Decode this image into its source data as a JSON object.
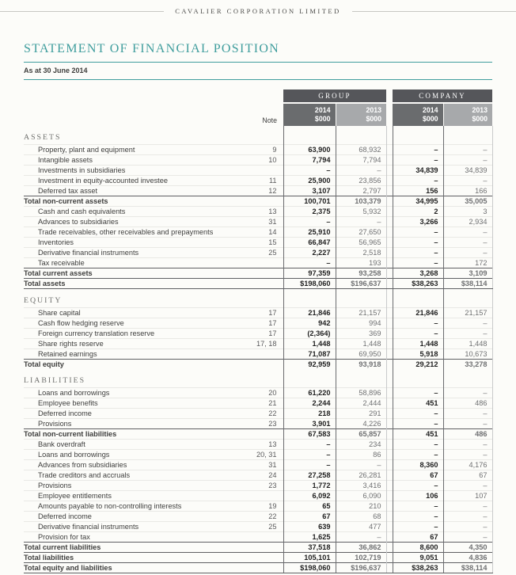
{
  "masthead": {
    "company_name": "CAVALIER CORPORATION LIMITED"
  },
  "page": {
    "title": "STATEMENT OF FINANCIAL POSITION",
    "date_line": "As at 30 June 2014"
  },
  "colors": {
    "accent_teal": "#3f9d9d",
    "header_bar": "#55565a",
    "col_2014_bg": "#6a6c6e",
    "col_2013_bg": "#a7a9ab"
  },
  "table": {
    "group_header": "GROUP",
    "company_header": "COMPANY",
    "note_label": "Note",
    "col_headers": {
      "group": [
        {
          "year": "2014",
          "unit": "$000"
        },
        {
          "year": "2013",
          "unit": "$000"
        }
      ],
      "company": [
        {
          "year": "2014",
          "unit": "$000"
        },
        {
          "year": "2013",
          "unit": "$000"
        }
      ]
    },
    "rows": [
      {
        "type": "section",
        "label": "ASSETS"
      },
      {
        "type": "item",
        "label": "Property, plant and equipment",
        "note": "9",
        "g2014": "63,900",
        "g2013": "68,932",
        "c2014": "–",
        "c2013": "–"
      },
      {
        "type": "item",
        "label": "Intangible assets",
        "note": "10",
        "g2014": "7,794",
        "g2013": "7,794",
        "c2014": "–",
        "c2013": "–"
      },
      {
        "type": "item",
        "label": "Investments in subsidiaries",
        "note": "",
        "g2014": "–",
        "g2013": "–",
        "c2014": "34,839",
        "c2013": "34,839"
      },
      {
        "type": "item",
        "label": "Investment in equity-accounted investee",
        "note": "11",
        "g2014": "25,900",
        "g2013": "23,856",
        "c2014": "–",
        "c2013": "–"
      },
      {
        "type": "item",
        "label": "Deferred tax asset",
        "note": "12",
        "g2014": "3,107",
        "g2013": "2,797",
        "c2014": "156",
        "c2013": "166"
      },
      {
        "type": "total",
        "label": "Total non-current assets",
        "note": "",
        "g2014": "100,701",
        "g2013": "103,379",
        "c2014": "34,995",
        "c2013": "35,005"
      },
      {
        "type": "item",
        "label": "Cash and cash equivalents",
        "note": "13",
        "g2014": "2,375",
        "g2013": "5,932",
        "c2014": "2",
        "c2013": "3"
      },
      {
        "type": "item",
        "label": "Advances to subsidiaries",
        "note": "31",
        "g2014": "–",
        "g2013": "–",
        "c2014": "3,266",
        "c2013": "2,934"
      },
      {
        "type": "item",
        "label": "Trade receivables, other receivables and prepayments",
        "note": "14",
        "g2014": "25,910",
        "g2013": "27,650",
        "c2014": "–",
        "c2013": "–"
      },
      {
        "type": "item",
        "label": "Inventories",
        "note": "15",
        "g2014": "66,847",
        "g2013": "56,965",
        "c2014": "–",
        "c2013": "–"
      },
      {
        "type": "item",
        "label": "Derivative financial instruments",
        "note": "25",
        "g2014": "2,227",
        "g2013": "2,518",
        "c2014": "–",
        "c2013": "–"
      },
      {
        "type": "item",
        "label": "Tax receivable",
        "note": "",
        "g2014": "–",
        "g2013": "193",
        "c2014": "–",
        "c2013": "172"
      },
      {
        "type": "total",
        "label": "Total current assets",
        "note": "",
        "g2014": "97,359",
        "g2013": "93,258",
        "c2014": "3,268",
        "c2013": "3,109"
      },
      {
        "type": "grand",
        "label": "Total assets",
        "note": "",
        "g2014": "$198,060",
        "g2013": "$196,637",
        "c2014": "$38,263",
        "c2013": "$38,114"
      },
      {
        "type": "section",
        "label": "EQUITY"
      },
      {
        "type": "item",
        "label": "Share capital",
        "note": "17",
        "g2014": "21,846",
        "g2013": "21,157",
        "c2014": "21,846",
        "c2013": "21,157"
      },
      {
        "type": "item",
        "label": "Cash flow hedging reserve",
        "note": "17",
        "g2014": "942",
        "g2013": "994",
        "c2014": "–",
        "c2013": "–"
      },
      {
        "type": "item",
        "label": "Foreign currency translation reserve",
        "note": "17",
        "g2014": "(2,364)",
        "g2013": "369",
        "c2014": "–",
        "c2013": "–"
      },
      {
        "type": "item",
        "label": "Share rights reserve",
        "note": "17, 18",
        "g2014": "1,448",
        "g2013": "1,448",
        "c2014": "1,448",
        "c2013": "1,448"
      },
      {
        "type": "item",
        "label": "Retained earnings",
        "note": "",
        "g2014": "71,087",
        "g2013": "69,950",
        "c2014": "5,918",
        "c2013": "10,673"
      },
      {
        "type": "total",
        "label": "Total equity",
        "note": "",
        "g2014": "92,959",
        "g2013": "93,918",
        "c2014": "29,212",
        "c2013": "33,278"
      },
      {
        "type": "section",
        "label": "LIABILITIES"
      },
      {
        "type": "item",
        "label": "Loans and borrowings",
        "note": "20",
        "g2014": "61,220",
        "g2013": "58,896",
        "c2014": "–",
        "c2013": "–"
      },
      {
        "type": "item",
        "label": "Employee benefits",
        "note": "21",
        "g2014": "2,244",
        "g2013": "2,444",
        "c2014": "451",
        "c2013": "486"
      },
      {
        "type": "item",
        "label": "Deferred income",
        "note": "22",
        "g2014": "218",
        "g2013": "291",
        "c2014": "–",
        "c2013": "–"
      },
      {
        "type": "item",
        "label": "Provisions",
        "note": "23",
        "g2014": "3,901",
        "g2013": "4,226",
        "c2014": "–",
        "c2013": "–"
      },
      {
        "type": "total",
        "label": "Total non-current liabilities",
        "note": "",
        "g2014": "67,583",
        "g2013": "65,857",
        "c2014": "451",
        "c2013": "486"
      },
      {
        "type": "item",
        "label": "Bank overdraft",
        "note": "13",
        "g2014": "–",
        "g2013": "234",
        "c2014": "–",
        "c2013": "–"
      },
      {
        "type": "item",
        "label": "Loans and borrowings",
        "note": "20, 31",
        "g2014": "–",
        "g2013": "86",
        "c2014": "–",
        "c2013": "–"
      },
      {
        "type": "item",
        "label": "Advances from subsidiaries",
        "note": "31",
        "g2014": "–",
        "g2013": "–",
        "c2014": "8,360",
        "c2013": "4,176"
      },
      {
        "type": "item",
        "label": "Trade creditors and accruals",
        "note": "24",
        "g2014": "27,258",
        "g2013": "26,281",
        "c2014": "67",
        "c2013": "67"
      },
      {
        "type": "item",
        "label": "Provisions",
        "note": "23",
        "g2014": "1,772",
        "g2013": "3,416",
        "c2014": "–",
        "c2013": "–"
      },
      {
        "type": "item",
        "label": "Employee entitlements",
        "note": "",
        "g2014": "6,092",
        "g2013": "6,090",
        "c2014": "106",
        "c2013": "107"
      },
      {
        "type": "item",
        "label": "Amounts payable to non-controlling interests",
        "note": "19",
        "g2014": "65",
        "g2013": "210",
        "c2014": "–",
        "c2013": "–"
      },
      {
        "type": "item",
        "label": "Deferred income",
        "note": "22",
        "g2014": "67",
        "g2013": "68",
        "c2014": "–",
        "c2013": "–"
      },
      {
        "type": "item",
        "label": "Derivative financial instruments",
        "note": "25",
        "g2014": "639",
        "g2013": "477",
        "c2014": "–",
        "c2013": "–"
      },
      {
        "type": "item",
        "label": "Provision for tax",
        "note": "",
        "g2014": "1,625",
        "g2013": "–",
        "c2014": "67",
        "c2013": "–"
      },
      {
        "type": "total",
        "label": "Total current liabilities",
        "note": "",
        "g2014": "37,518",
        "g2013": "36,862",
        "c2014": "8,600",
        "c2013": "4,350"
      },
      {
        "type": "total",
        "label": "Total liabilities",
        "note": "",
        "g2014": "105,101",
        "g2013": "102,719",
        "c2014": "9,051",
        "c2013": "4,836"
      },
      {
        "type": "grand",
        "label": "Total equity and liabilities",
        "note": "",
        "g2014": "$198,060",
        "g2013": "$196,637",
        "c2014": "$38,263",
        "c2013": "$38,114"
      }
    ]
  }
}
